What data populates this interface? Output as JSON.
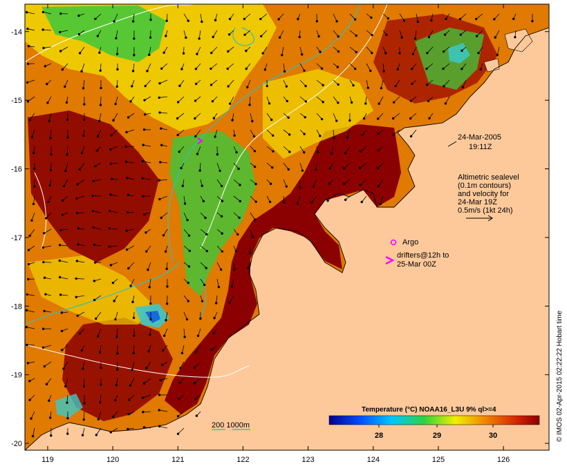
{
  "map": {
    "lon_ticks": [
      "119",
      "120",
      "121",
      "122",
      "123",
      "124",
      "125",
      "126"
    ],
    "lat_ticks": [
      "-14",
      "-15",
      "-16",
      "-17",
      "-18",
      "-19",
      "-20"
    ],
    "lon_range": [
      118.65,
      126.7
    ],
    "lat_range": [
      -13.6,
      -20.1
    ],
    "colors": {
      "land": "#fdc99a",
      "warm": "#8b0000",
      "orange": "#e07a00",
      "yellow": "#f0d000",
      "green": "#3cc83c",
      "cyan": "#3cc8c8",
      "blue": "#1060e0",
      "contour": "#ffffff",
      "isobath": "#30c0c0"
    }
  },
  "annotations": {
    "date_line1": "24-Mar-2005",
    "date_line2": "19:11Z",
    "alt_line1": "Altimetric sealevel",
    "alt_line2": "(0.1m contours)",
    "alt_line3": "and velocity for",
    "alt_line4": "24-Mar 19Z",
    "alt_line5": "0.5m/s (1kt 24h)",
    "argo_label": "Argo",
    "drifter_line1": "drifters@12h to",
    "drifter_line2": "25-Mar 00Z",
    "isobath_label": "200 1000m",
    "colorbar_title": "Temperature (°C) NOAA16_L3U 9% ql>=4",
    "colorbar_ticks": [
      "28",
      "29",
      "30"
    ],
    "credit": "© IMOS 02-Apr-2015 02:22:22 Hobart time"
  }
}
